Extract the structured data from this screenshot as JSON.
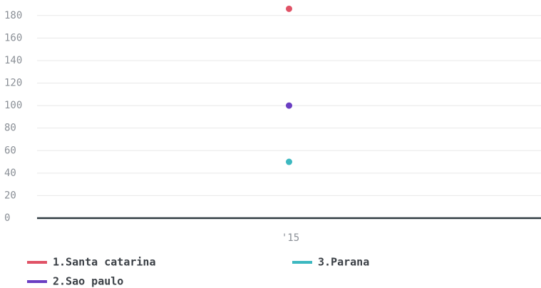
{
  "chart_data": {
    "type": "line",
    "categories": [
      "'15"
    ],
    "series": [
      {
        "name": "1.Santa catarina",
        "color": "#e05266",
        "values": [
          186
        ]
      },
      {
        "name": "2.Sao paulo",
        "color": "#6a3ec2",
        "values": [
          100
        ]
      },
      {
        "name": "3.Parana",
        "color": "#3cb8c0",
        "values": [
          50
        ]
      }
    ],
    "ylim": [
      0,
      190
    ],
    "yticks": [
      0,
      20,
      40,
      60,
      80,
      100,
      120,
      140,
      160,
      180
    ],
    "grid": true
  }
}
